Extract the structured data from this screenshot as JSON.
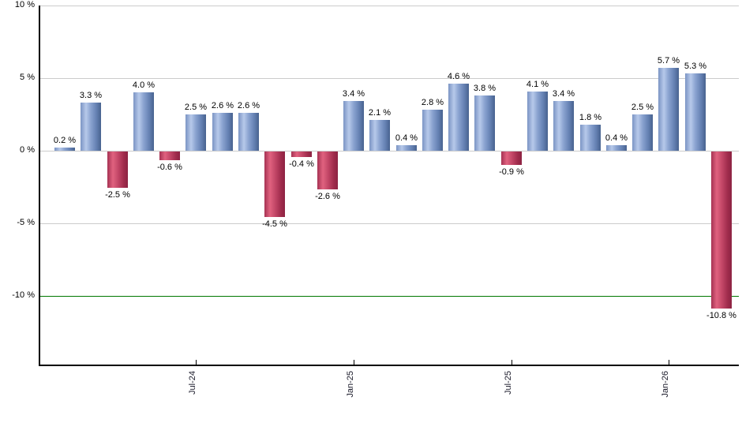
{
  "chart_data": {
    "type": "bar",
    "title": "",
    "unit": "%",
    "values": [
      0.2,
      3.3,
      -2.5,
      4.0,
      -0.6,
      2.5,
      2.6,
      2.6,
      -4.5,
      -0.4,
      -2.6,
      3.4,
      2.1,
      0.4,
      2.8,
      4.6,
      3.8,
      -0.9,
      4.1,
      3.4,
      1.8,
      0.4,
      2.5,
      5.7,
      5.3,
      -10.8
    ],
    "bar_labels": [
      "0.2 %",
      "3.3 %",
      "-2.5 %",
      "4.0 %",
      "-0.6 %",
      "2.5 %",
      "2.6 %",
      "2.6 %",
      "-4.5 %",
      "-0.4 %",
      "-2.6 %",
      "3.4 %",
      "2.1 %",
      "0.4 %",
      "2.8 %",
      "4.6 %",
      "3.8 %",
      "-0.9 %",
      "4.1 %",
      "3.4 %",
      "1.8 %",
      "0.4 %",
      "2.5 %",
      "5.7 %",
      "5.3 %",
      "-10.8 %"
    ],
    "x_axis": {
      "tick_labels": [
        "Jul-24",
        "Jan-25",
        "Jul-25",
        "Jan-26"
      ],
      "tick_bar_indices": [
        5,
        11,
        17,
        23
      ]
    },
    "y_axis": {
      "tick_labels": [
        "10 %",
        "5 %",
        "0 %",
        "-5 %",
        "-10 %"
      ],
      "tick_values": [
        10,
        5,
        0,
        -5,
        -10
      ],
      "range": [
        -15,
        10
      ]
    },
    "reference_line": {
      "value": -10,
      "color": "#007800"
    },
    "colors": {
      "positive_bar": "#7b94c4",
      "positive_bar_highlight": "#b7c9ea",
      "negative_bar": "#c04465",
      "negative_bar_highlight": "#e0627f",
      "gridline": "#cccccc",
      "axis": "#000000",
      "label_text": "#000000",
      "background": "#ffffff"
    },
    "grid": true,
    "legend": false
  }
}
